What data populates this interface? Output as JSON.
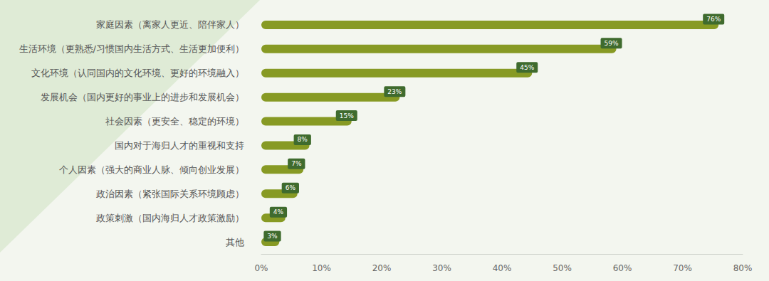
{
  "chart_data": {
    "type": "bar",
    "orientation": "horizontal",
    "categories": [
      "家庭因素（离家人更近、陪伴家人）",
      "生活环境（更熟悉/习惯国内生活方式、生活更加便利）",
      "文化环境（认同国内的文化环境、更好的环境融入）",
      "发展机会（国内更好的事业上的进步和发展机会）",
      "社会因素（更安全、稳定的环境）",
      "国内对于海归人才的重视和支持",
      "个人因素（强大的商业人脉、倾向创业发展）",
      "政治因素（紧张国际关系环境顾虑）",
      "政策刺激（国内海归人才政策激励）",
      "其他"
    ],
    "values": [
      76,
      59,
      45,
      23,
      15,
      8,
      7,
      6,
      4,
      3
    ],
    "value_labels": [
      "76%",
      "59%",
      "45%",
      "23%",
      "15%",
      "8%",
      "7%",
      "6%",
      "4%",
      "3%"
    ],
    "color": "#879a24",
    "xlim": [
      0,
      80
    ],
    "xticks": [
      {
        "value": 0,
        "label": "0%"
      },
      {
        "value": 10,
        "label": "10%"
      },
      {
        "value": 20,
        "label": "20%"
      },
      {
        "value": 30,
        "label": "30%"
      },
      {
        "value": 40,
        "label": "40%"
      },
      {
        "value": 50,
        "label": "50%"
      },
      {
        "value": 60,
        "label": "60%"
      },
      {
        "value": 70,
        "label": "70%"
      },
      {
        "value": 80,
        "label": "80%"
      }
    ],
    "grid": false,
    "data_labels": true
  }
}
